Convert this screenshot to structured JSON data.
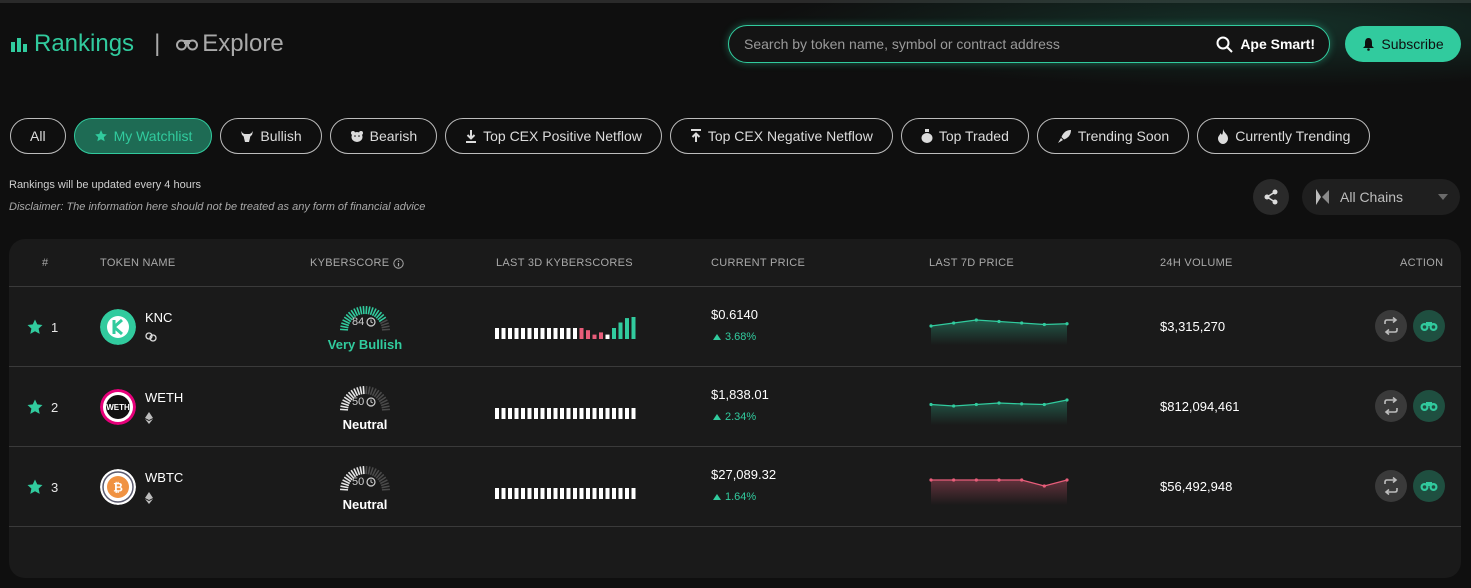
{
  "nav": {
    "rankings": "Rankings",
    "separator": "|",
    "explore": "Explore"
  },
  "search": {
    "placeholder": "Search by token name, symbol or contract address",
    "button": "Ape Smart!"
  },
  "subscribe": "Subscribe",
  "filters": [
    {
      "label": "All",
      "icon": ""
    },
    {
      "label": "My Watchlist",
      "icon": "star-icon"
    },
    {
      "label": "Bullish",
      "icon": "bull-icon"
    },
    {
      "label": "Bearish",
      "icon": "bear-icon"
    },
    {
      "label": "Top CEX Positive Netflow",
      "icon": "download-icon"
    },
    {
      "label": "Top CEX Negative Netflow",
      "icon": "upload-icon"
    },
    {
      "label": "Top Traded",
      "icon": "money-bag-icon"
    },
    {
      "label": "Trending Soon",
      "icon": "rocket-icon"
    },
    {
      "label": "Currently Trending",
      "icon": "flame-icon"
    }
  ],
  "active_filter": "My Watchlist",
  "notes": {
    "update": "Rankings will be updated every 4 hours",
    "disclaimer": "Disclaimer: The information here should not be treated as any form of financial advice"
  },
  "chain_select": "All Chains",
  "columns": {
    "rank": "#",
    "token": "TOKEN NAME",
    "kyberscore": "KYBERSCORE",
    "last3d": "LAST 3D KYBERSCORES",
    "price": "CURRENT PRICE",
    "last7d": "LAST 7D PRICE",
    "volume": "24H VOLUME",
    "action": "ACTION"
  },
  "colors": {
    "accent": "#31cb9e",
    "bearish": "#e85d7a",
    "neutral": "#ffffff"
  },
  "rows": [
    {
      "rank": "1",
      "name": "KNC",
      "chain_icon": "multichain-icon",
      "score": "84",
      "tag": "Very Bullish",
      "tag_color": "#31cb9e",
      "score_level": 0.84,
      "bars": [
        0.5,
        0.5,
        0.5,
        0.5,
        0.5,
        0.5,
        0.5,
        0.5,
        0.5,
        0.5,
        0.5,
        0.5,
        0.5,
        0.5,
        0.4,
        0.2,
        0.3,
        0.2,
        0.5,
        0.75,
        0.95,
        1.0
      ],
      "bar_colors": [
        "#fff",
        "#fff",
        "#fff",
        "#fff",
        "#fff",
        "#fff",
        "#fff",
        "#fff",
        "#fff",
        "#fff",
        "#fff",
        "#fff",
        "#fff",
        "#e85d7a",
        "#e85d7a",
        "#e85d7a",
        "#e85d7a",
        "#fff",
        "#31cb9e",
        "#31cb9e",
        "#31cb9e",
        "#31cb9e"
      ],
      "price": "$0.6140",
      "change": "3.68%",
      "spark": [
        0.6,
        0.62,
        0.64,
        0.63,
        0.62,
        0.61,
        0.615
      ],
      "spark_color": "#31cb9e",
      "volume": "$3,315,270"
    },
    {
      "rank": "2",
      "name": "WETH",
      "chain_icon": "ethereum-icon",
      "score": "50",
      "tag": "Neutral",
      "tag_color": "#ffffff",
      "score_level": 0.5,
      "bars": [
        0.5,
        0.5,
        0.5,
        0.5,
        0.5,
        0.5,
        0.5,
        0.5,
        0.5,
        0.5,
        0.5,
        0.5,
        0.5,
        0.5,
        0.5,
        0.5,
        0.5,
        0.5,
        0.5,
        0.5,
        0.5,
        0.5
      ],
      "bar_colors": [
        "#fff",
        "#fff",
        "#fff",
        "#fff",
        "#fff",
        "#fff",
        "#fff",
        "#fff",
        "#fff",
        "#fff",
        "#fff",
        "#fff",
        "#fff",
        "#fff",
        "#fff",
        "#fff",
        "#fff",
        "#fff",
        "#fff",
        "#fff",
        "#fff",
        "#fff"
      ],
      "price": "$1,838.01",
      "change": "2.34%",
      "spark": [
        1820,
        1815,
        1820,
        1825,
        1822,
        1820,
        1835
      ],
      "spark_color": "#31cb9e",
      "volume": "$812,094,461"
    },
    {
      "rank": "3",
      "name": "WBTC",
      "chain_icon": "ethereum-icon",
      "score": "50",
      "tag": "Neutral",
      "tag_color": "#ffffff",
      "score_level": 0.5,
      "bars": [
        0.5,
        0.5,
        0.5,
        0.5,
        0.5,
        0.5,
        0.5,
        0.5,
        0.5,
        0.5,
        0.5,
        0.5,
        0.5,
        0.5,
        0.5,
        0.5,
        0.5,
        0.5,
        0.5,
        0.5,
        0.5,
        0.5
      ],
      "bar_colors": [
        "#fff",
        "#fff",
        "#fff",
        "#fff",
        "#fff",
        "#fff",
        "#fff",
        "#fff",
        "#fff",
        "#fff",
        "#fff",
        "#fff",
        "#fff",
        "#fff",
        "#fff",
        "#fff",
        "#fff",
        "#fff",
        "#fff",
        "#fff",
        "#fff",
        "#fff"
      ],
      "price": "$27,089.32",
      "change": "1.64%",
      "spark": [
        27090,
        27090,
        27090,
        27090,
        27090,
        27050,
        27090
      ],
      "spark_color": "#e85d7a",
      "volume": "$56,492,948"
    }
  ]
}
